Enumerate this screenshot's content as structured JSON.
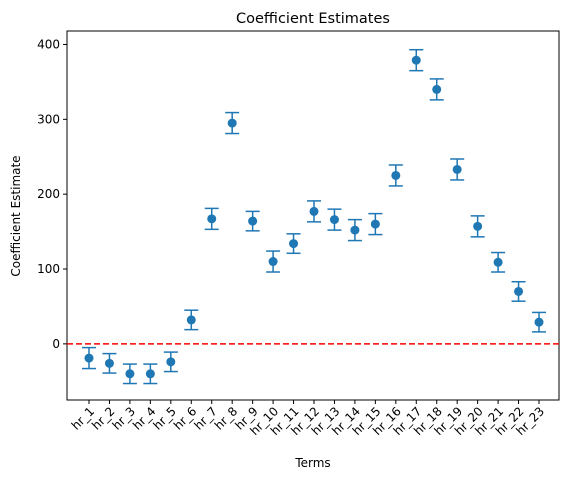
{
  "chart_data": {
    "type": "scatter",
    "title": "Coefficient Estimates",
    "xlabel": "Terms",
    "ylabel": "Coefficient Estimate",
    "categories": [
      "hr_1",
      "hr_2",
      "hr_3",
      "hr_4",
      "hr_5",
      "hr_6",
      "hr_7",
      "hr_8",
      "hr_9",
      "hr_10",
      "hr_11",
      "hr_12",
      "hr_13",
      "hr_14",
      "hr_15",
      "hr_16",
      "hr_17",
      "hr_18",
      "hr_19",
      "hr_20",
      "hr_21",
      "hr_22",
      "hr_23"
    ],
    "values": [
      -19,
      -26,
      -40,
      -40,
      -24,
      32,
      167,
      295,
      164,
      110,
      134,
      177,
      166,
      152,
      160,
      225,
      379,
      340,
      233,
      157,
      109,
      70,
      29
    ],
    "error": [
      14,
      13,
      13,
      13,
      13,
      13,
      14,
      14,
      13,
      14,
      13,
      14,
      14,
      14,
      14,
      14,
      14,
      14,
      14,
      14,
      13,
      13,
      13
    ],
    "ylim": [
      -75,
      418
    ],
    "yticks": [
      0,
      100,
      200,
      300,
      400
    ],
    "reference_line": {
      "y": 0,
      "color": "#ff0000",
      "style": "dashed"
    },
    "marker_color": "#1f77b4",
    "grid": false
  }
}
